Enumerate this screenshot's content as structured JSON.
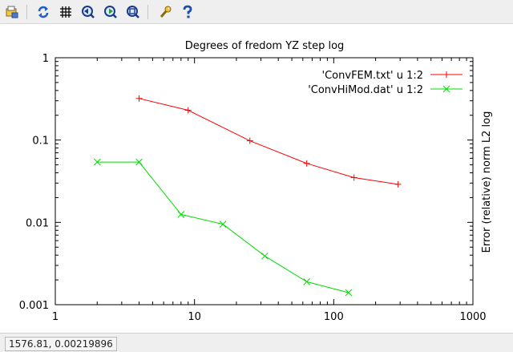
{
  "toolbar": {
    "buttons": [
      {
        "name": "export-icon"
      },
      {
        "name": "replot-icon"
      },
      {
        "name": "grid-icon"
      },
      {
        "name": "zoom-previous-icon"
      },
      {
        "name": "zoom-next-icon"
      },
      {
        "name": "autoscale-icon"
      },
      {
        "name": "settings-icon"
      },
      {
        "name": "help-icon"
      }
    ]
  },
  "status": {
    "coordinates": "1576.81,  0.00219896"
  },
  "chart_data": {
    "type": "line",
    "title": "Degrees of fredom YZ step log",
    "xlabel": "",
    "ylabel": "Error (relative) norm L2 log",
    "xscale": "log",
    "yscale": "log",
    "xlim": [
      1,
      1000
    ],
    "ylim": [
      0.001,
      1
    ],
    "xticks": [
      "1",
      "10",
      "100",
      "1000"
    ],
    "yticks": [
      "1",
      "0.1",
      "0.01",
      "0.001"
    ],
    "grid": false,
    "legend_position": "top-right",
    "series": [
      {
        "name": "'ConvFEM.txt' u 1:2",
        "color": "#ff0000",
        "marker": "plus",
        "x": [
          4,
          9,
          25,
          64,
          140,
          290
        ],
        "y": [
          0.32,
          0.23,
          0.098,
          0.052,
          0.035,
          0.029
        ]
      },
      {
        "name": "'ConvHiMod.dat' u 1:2",
        "color": "#00dd00",
        "marker": "cross",
        "x": [
          2,
          4,
          8,
          16,
          32,
          64,
          128
        ],
        "y": [
          0.054,
          0.054,
          0.0125,
          0.0095,
          0.0039,
          0.0019,
          0.0014
        ]
      }
    ]
  }
}
